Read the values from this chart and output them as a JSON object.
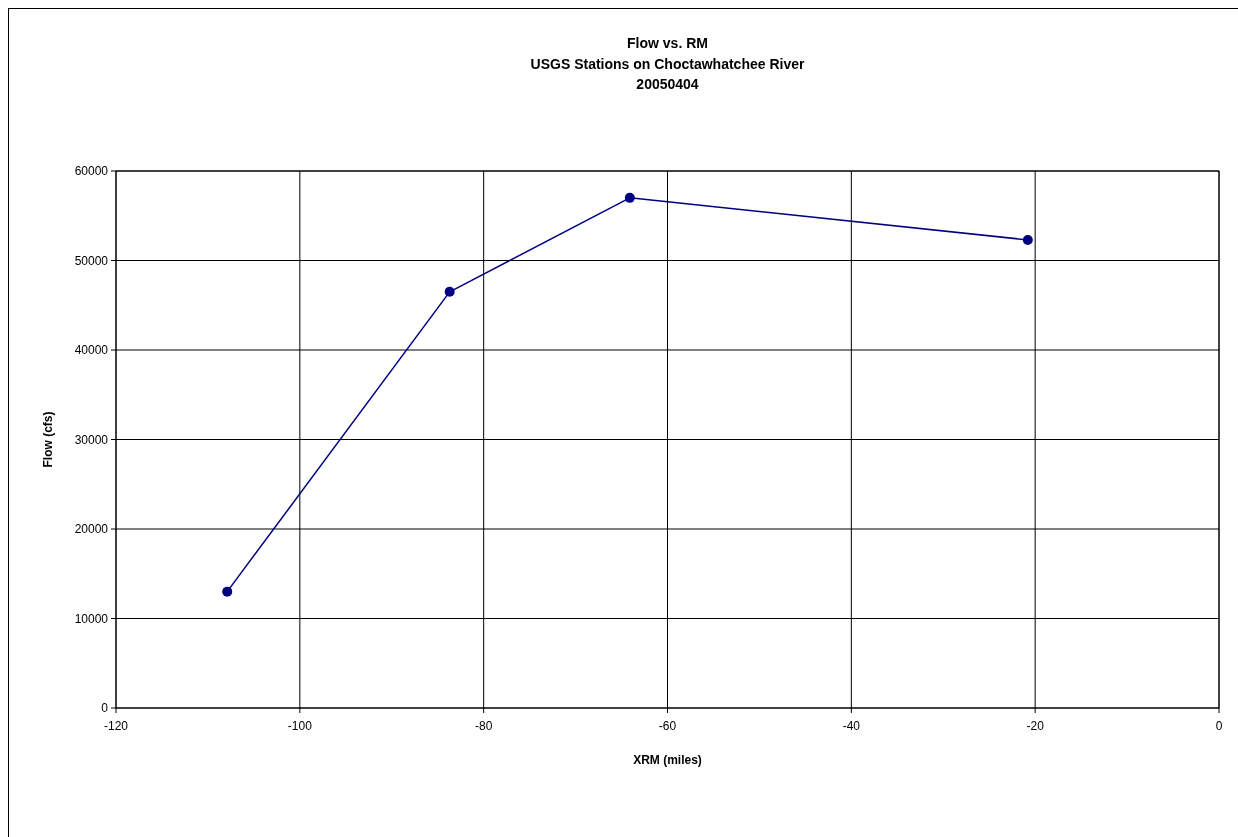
{
  "chart_data": {
    "type": "line",
    "title": "Flow vs. RM",
    "subtitle": "USGS Stations on Choctawhatchee River\n20050404",
    "xlabel": "XRM (miles)",
    "ylabel": "Flow (cfs)",
    "xlim": [
      -120,
      0
    ],
    "xticks": [
      -120,
      -100,
      -80,
      -60,
      -40,
      -20,
      0
    ],
    "ylim": [
      0,
      60000
    ],
    "yticks": [
      0,
      10000,
      20000,
      30000,
      40000,
      50000,
      60000
    ],
    "grid": true,
    "marker": "circle",
    "line_style": "solid",
    "series": [
      {
        "color": "#000080",
        "x": [
          -107.9,
          -83.7,
          -64.1,
          -20.8
        ],
        "values": [
          13000,
          46500,
          57000,
          52300
        ]
      }
    ]
  }
}
